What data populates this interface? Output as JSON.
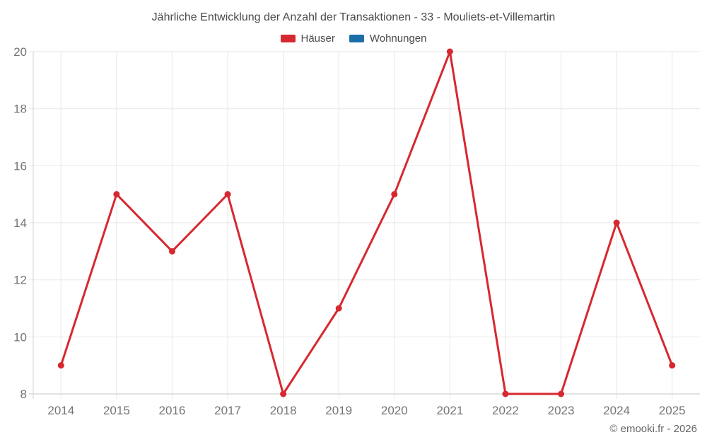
{
  "header": {
    "title": "Jährliche Entwicklung der Anzahl der Transaktionen - 33 - Mouliets-et-Villemartin"
  },
  "legend": {
    "items": [
      {
        "label": "Häuser",
        "color": "#d7282f"
      },
      {
        "label": "Wohnungen",
        "color": "#1c6ea9"
      }
    ]
  },
  "footer": {
    "credit": "© emooki.fr - 2026"
  },
  "chart_data": {
    "type": "line",
    "title": "Jährliche Entwicklung der Anzahl der Transaktionen - 33 - Mouliets-et-Villemartin",
    "categories": [
      "2014",
      "2015",
      "2016",
      "2017",
      "2018",
      "2019",
      "2020",
      "2021",
      "2022",
      "2023",
      "2024",
      "2025"
    ],
    "series": [
      {
        "name": "Häuser",
        "color": "#d7282f",
        "values": [
          9,
          15,
          13,
          15,
          8,
          11,
          15,
          20,
          8,
          8,
          14,
          9
        ]
      },
      {
        "name": "Wohnungen",
        "color": "#1c6ea9",
        "values": []
      }
    ],
    "xlabel": "",
    "ylabel": "",
    "ylim": [
      8,
      20
    ],
    "ytick_step": 2,
    "grid": true,
    "legend_position": "top",
    "grid_color": "#ebebeb",
    "axis_color": "#d8d8d8",
    "tick_label_color": "#757575"
  }
}
